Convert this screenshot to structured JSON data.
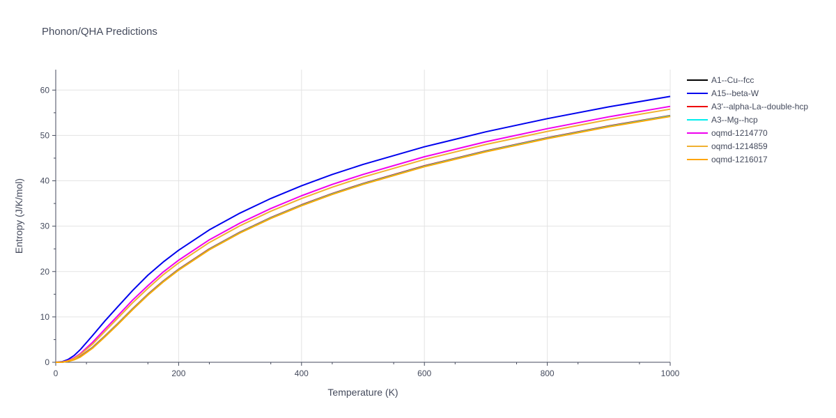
{
  "chart_data": {
    "type": "line",
    "title": "Phonon/QHA Predictions",
    "xlabel": "Temperature (K)",
    "ylabel": "Entropy (J/K/mol)",
    "xlim": [
      0,
      1000
    ],
    "ylim": [
      0,
      64.5
    ],
    "xticks": [
      0,
      200,
      400,
      600,
      800,
      1000
    ],
    "yticks": [
      0,
      10,
      20,
      30,
      40,
      50,
      60
    ],
    "grid": true,
    "legend_position": "top-right",
    "x": [
      0,
      10,
      20,
      30,
      40,
      60,
      80,
      100,
      125,
      150,
      175,
      200,
      250,
      300,
      350,
      400,
      450,
      500,
      600,
      700,
      800,
      900,
      1000
    ],
    "series": [
      {
        "name": "A1--Cu--fcc",
        "color": "#000000",
        "values": [
          0,
          0.02,
          0.2,
          0.6,
          1.2,
          3.2,
          5.7,
          8.3,
          11.7,
          14.9,
          17.8,
          20.4,
          24.9,
          28.6,
          31.8,
          34.6,
          37.1,
          39.3,
          43.2,
          46.5,
          49.4,
          52.0,
          54.3
        ]
      },
      {
        "name": "A15--beta-W",
        "color": "#0000ee",
        "values": [
          0,
          0.1,
          0.6,
          1.5,
          2.8,
          5.9,
          9.1,
          12.1,
          15.8,
          19.2,
          22.1,
          24.7,
          29.2,
          32.9,
          36.1,
          38.9,
          41.4,
          43.6,
          47.5,
          50.8,
          53.7,
          56.3,
          58.6
        ]
      },
      {
        "name": "A3'--alpha-La--double-hcp",
        "color": "#ee0000",
        "values": [
          0,
          0.02,
          0.2,
          0.6,
          1.3,
          3.3,
          5.8,
          8.4,
          11.8,
          15.0,
          17.9,
          20.5,
          25.0,
          28.7,
          31.9,
          34.7,
          37.2,
          39.4,
          43.3,
          46.6,
          49.5,
          52.1,
          54.4
        ]
      },
      {
        "name": "A3--Mg--hcp",
        "color": "#00eeee",
        "values": [
          0,
          0.02,
          0.2,
          0.6,
          1.2,
          3.2,
          5.7,
          8.3,
          11.7,
          14.9,
          17.8,
          20.4,
          24.9,
          28.6,
          31.8,
          34.6,
          37.1,
          39.3,
          43.2,
          46.5,
          49.4,
          52.0,
          54.3
        ]
      },
      {
        "name": "oqmd-1214770",
        "color": "#ee00ee",
        "values": [
          0,
          0.05,
          0.35,
          1.0,
          1.9,
          4.4,
          7.3,
          10.1,
          13.7,
          16.9,
          19.9,
          22.5,
          27.0,
          30.7,
          33.9,
          36.7,
          39.2,
          41.4,
          45.3,
          48.6,
          51.5,
          54.1,
          56.4
        ]
      },
      {
        "name": "oqmd-1214859",
        "color": "#f0b030",
        "values": [
          0,
          0.04,
          0.3,
          0.85,
          1.7,
          4.0,
          6.8,
          9.6,
          13.1,
          16.3,
          19.3,
          21.9,
          26.4,
          30.1,
          33.3,
          36.1,
          38.6,
          40.8,
          44.7,
          48.0,
          50.9,
          53.5,
          55.8
        ]
      },
      {
        "name": "oqmd-1216017",
        "color": "#ffa500",
        "values": [
          0,
          0.02,
          0.18,
          0.55,
          1.15,
          3.1,
          5.6,
          8.2,
          11.6,
          14.8,
          17.7,
          20.3,
          24.8,
          28.5,
          31.7,
          34.5,
          37.0,
          39.2,
          43.1,
          46.4,
          49.3,
          51.9,
          54.2
        ]
      }
    ]
  }
}
